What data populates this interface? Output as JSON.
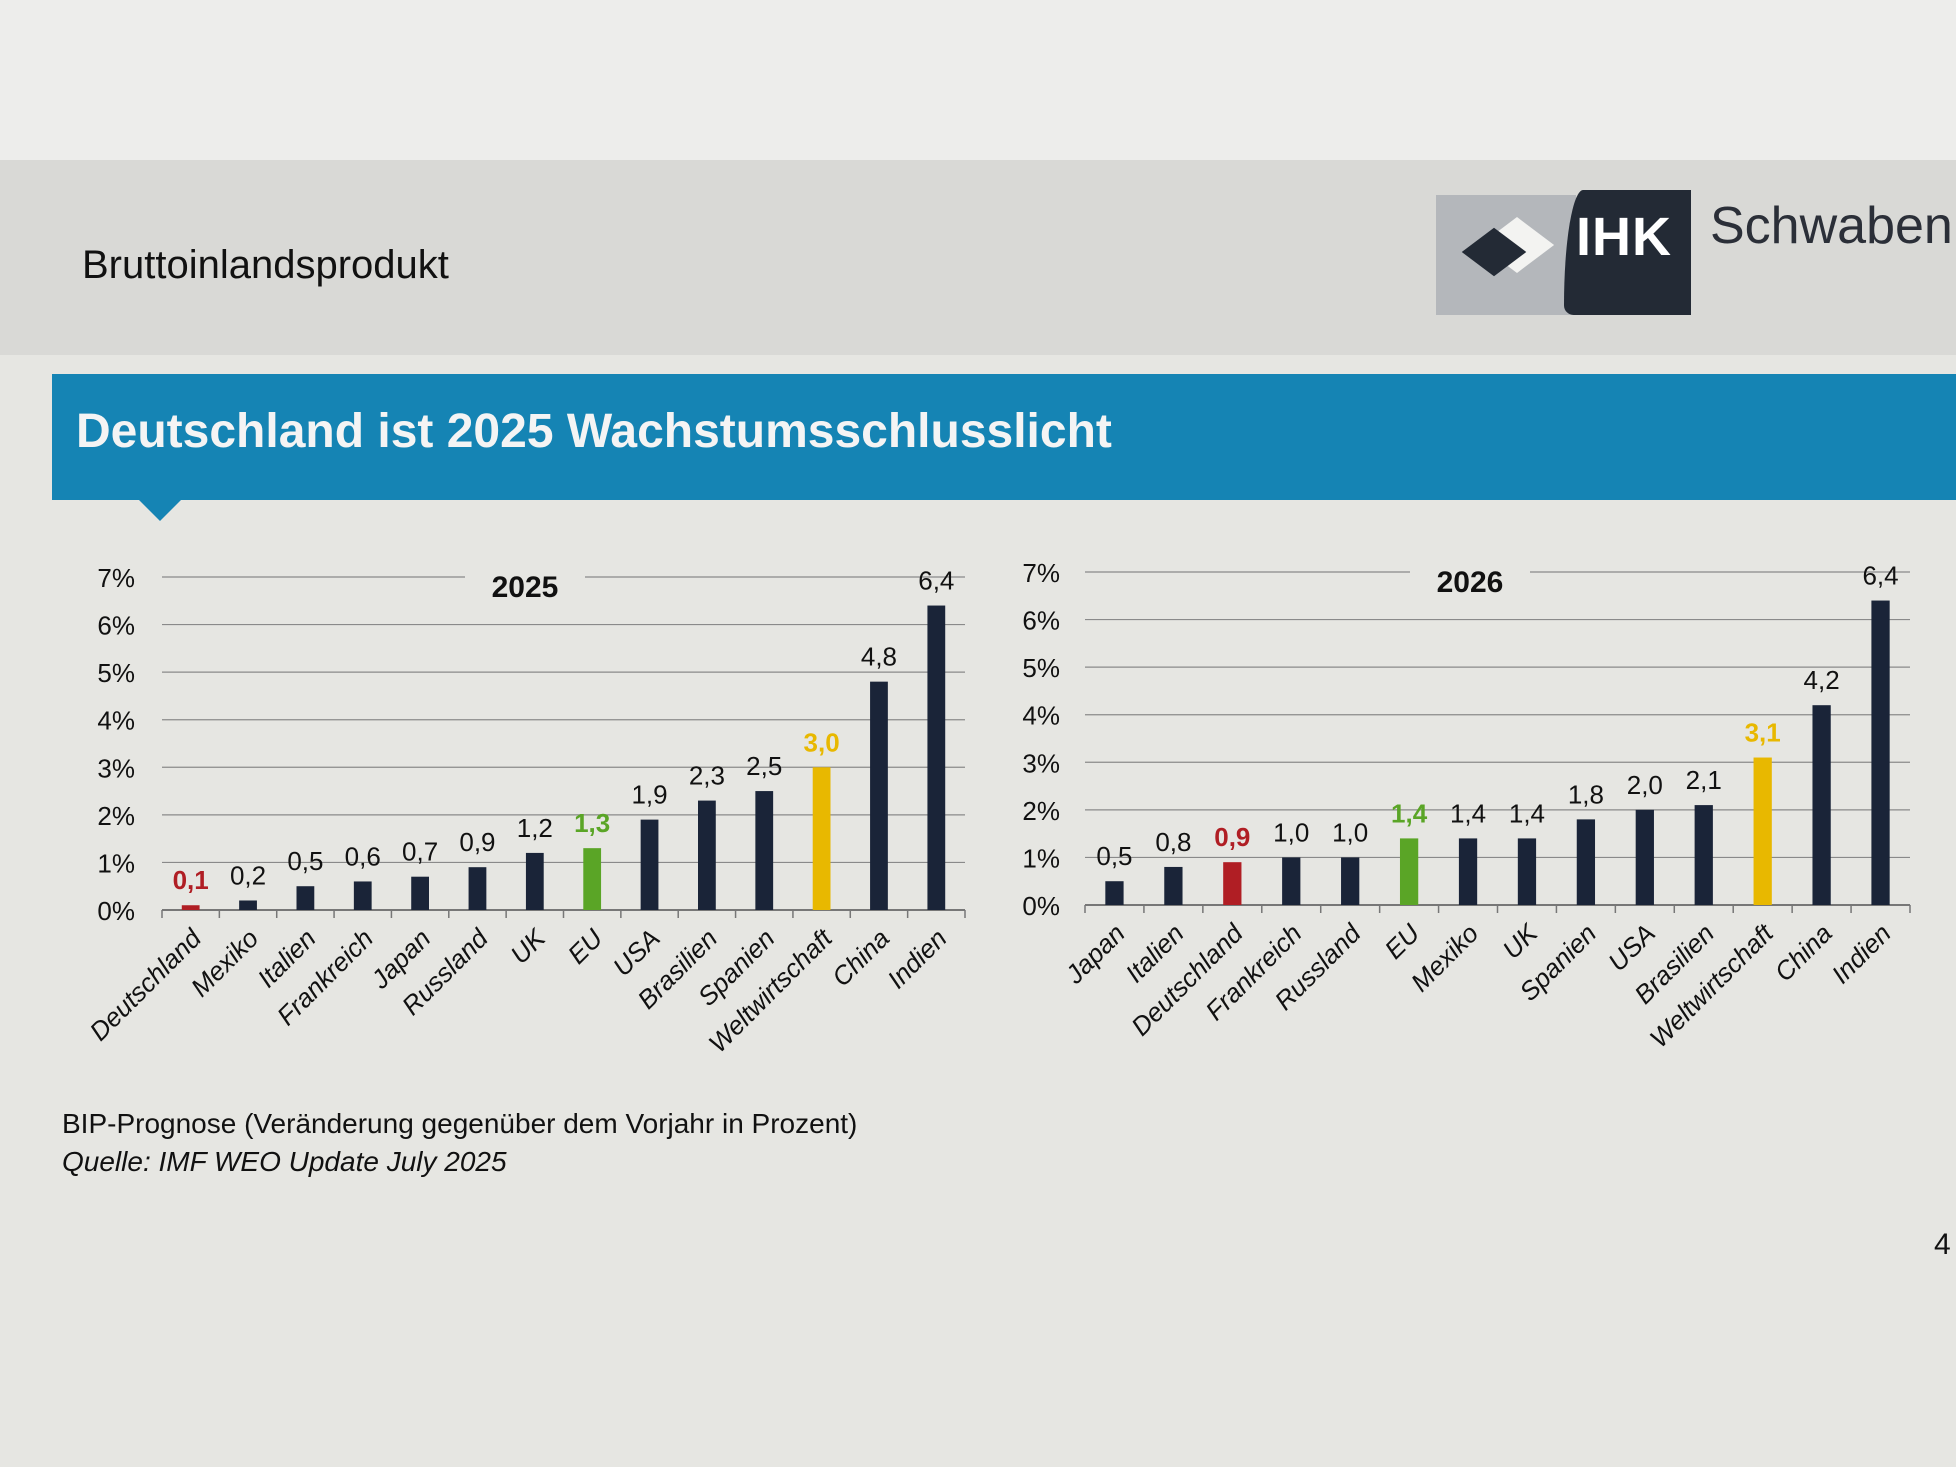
{
  "header": {
    "title": "Bruttoinlandsprodukt",
    "logo_text": "IHK",
    "logo_name": "Schwaben"
  },
  "banner": {
    "title": "Deutschland ist 2025 Wachstumsschlusslicht",
    "color": "#1584b4"
  },
  "colors": {
    "default": "#1a2438",
    "highlight_germany": "#b01e24",
    "highlight_eu": "#5aa526",
    "highlight_world": "#e8b800"
  },
  "chart_data": [
    {
      "type": "bar",
      "title": "2025",
      "categories": [
        "Deutschland",
        "Mexiko",
        "Italien",
        "Frankreich",
        "Japan",
        "Russland",
        "UK",
        "EU",
        "USA",
        "Brasilien",
        "Spanien",
        "Weltwirtschaft",
        "China",
        "Indien"
      ],
      "values": [
        0.1,
        0.2,
        0.5,
        0.6,
        0.7,
        0.9,
        1.2,
        1.3,
        1.9,
        2.3,
        2.5,
        3.0,
        4.8,
        6.4
      ],
      "value_labels": [
        "0,1",
        "0,2",
        "0,5",
        "0,6",
        "0,7",
        "0,9",
        "1,2",
        "1,3",
        "1,9",
        "2,3",
        "2,5",
        "3,0",
        "4,8",
        "6,4"
      ],
      "highlights": [
        "germany",
        "default",
        "default",
        "default",
        "default",
        "default",
        "default",
        "eu",
        "default",
        "default",
        "default",
        "world",
        "default",
        "default"
      ],
      "ylim": [
        0,
        7
      ],
      "yticks": [
        "0%",
        "1%",
        "2%",
        "3%",
        "4%",
        "5%",
        "6%",
        "7%"
      ],
      "xlabel": "",
      "ylabel": "",
      "grid": true
    },
    {
      "type": "bar",
      "title": "2026",
      "categories": [
        "Japan",
        "Italien",
        "Deutschland",
        "Frankreich",
        "Russland",
        "EU",
        "Mexiko",
        "UK",
        "Spanien",
        "USA",
        "Brasilien",
        "Weltwirtschaft",
        "China",
        "Indien"
      ],
      "values": [
        0.5,
        0.8,
        0.9,
        1.0,
        1.0,
        1.4,
        1.4,
        1.4,
        1.8,
        2.0,
        2.1,
        3.1,
        4.2,
        6.4
      ],
      "value_labels": [
        "0,5",
        "0,8",
        "0,9",
        "1,0",
        "1,0",
        "1,4",
        "1,4",
        "1,4",
        "1,8",
        "2,0",
        "2,1",
        "3,1",
        "4,2",
        "6,4"
      ],
      "highlights": [
        "default",
        "default",
        "germany",
        "default",
        "default",
        "eu",
        "default",
        "default",
        "default",
        "default",
        "default",
        "world",
        "default",
        "default"
      ],
      "ylim": [
        0,
        7
      ],
      "yticks": [
        "0%",
        "1%",
        "2%",
        "3%",
        "4%",
        "5%",
        "6%",
        "7%"
      ],
      "xlabel": "",
      "ylabel": "",
      "grid": true
    }
  ],
  "footer": {
    "note": "BIP-Prognose (Veränderung gegenüber dem Vorjahr in Prozent)",
    "source": "Quelle: IMF WEO Update July 2025",
    "page_number": "4"
  }
}
